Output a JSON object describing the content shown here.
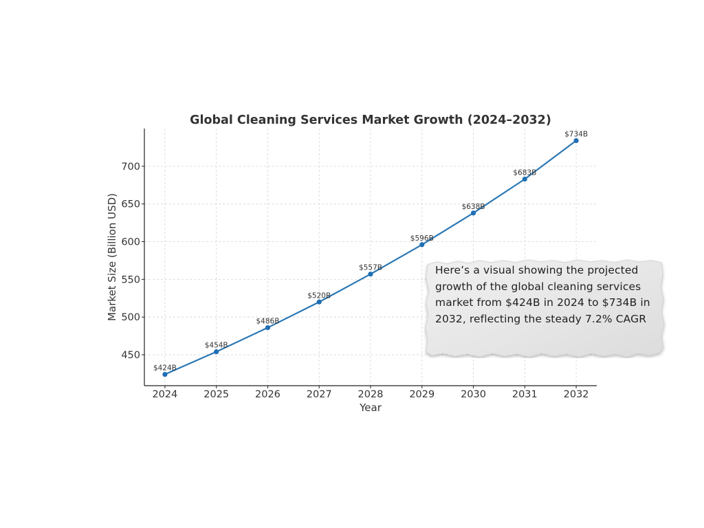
{
  "chart_data": {
    "type": "line",
    "title": "Global Cleaning Services Market Growth (2024–2032)",
    "xlabel": "Year",
    "ylabel": "Market Size (Billion USD)",
    "x": [
      2024,
      2025,
      2026,
      2027,
      2028,
      2029,
      2030,
      2031,
      2032
    ],
    "series": [
      {
        "values": [
          424,
          454,
          486,
          520,
          557,
          596,
          638,
          683,
          734
        ]
      }
    ],
    "data_labels": [
      "$424B",
      "$454B",
      "$486B",
      "$520B",
      "$557B",
      "$596B",
      "$638B",
      "$683B",
      "$734B"
    ],
    "xticks": [
      "2024",
      "2025",
      "2026",
      "2027",
      "2028",
      "2029",
      "2030",
      "2031",
      "2032"
    ],
    "yticks": [
      450,
      500,
      550,
      600,
      650,
      700
    ],
    "xlim": [
      2023.6,
      2032.4
    ],
    "ylim": [
      409,
      750
    ],
    "grid": true,
    "legend": "none",
    "colors": {
      "line": "#2a77b4",
      "marker": "#1f6fb4",
      "text": "#333333",
      "grid": "#d4d4d4"
    }
  },
  "note": {
    "text": "Here’s a visual showing the projected growth of the global cleaning services market from $424B in 2024 to $734B in 2032, reflecting the steady 7.2% CAGR"
  }
}
